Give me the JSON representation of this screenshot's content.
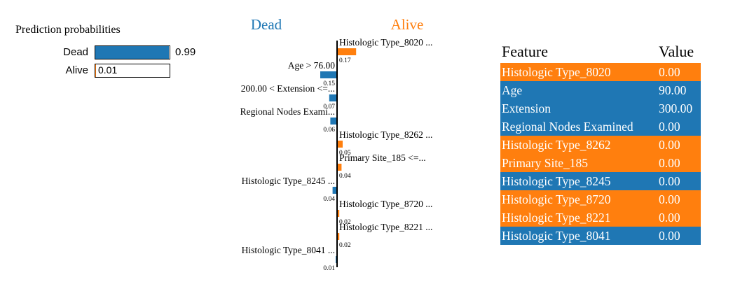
{
  "prediction": {
    "title": "Prediction probabilities",
    "classes": [
      {
        "label": "Dead",
        "value": 0.99,
        "value_text": "0.99",
        "color": "#1f77b4"
      },
      {
        "label": "Alive",
        "value": 0.01,
        "value_text": "0.01",
        "color": "#ff7f0e"
      }
    ]
  },
  "chart_data": {
    "type": "bar",
    "class_labels": {
      "negative": "Dead",
      "positive": "Alive"
    },
    "colors": {
      "negative": "#1f77b4",
      "positive": "#ff7f0e"
    },
    "features": [
      {
        "label": "Histologic Type_8020 ...",
        "value": 0.17,
        "value_text": "0.17",
        "side": "positive"
      },
      {
        "label": "Age > 76.00",
        "value": 0.15,
        "value_text": "0.15",
        "side": "negative"
      },
      {
        "label": "200.00 < Extension <=...",
        "value": 0.07,
        "value_text": "0.07",
        "side": "negative"
      },
      {
        "label": "Regional Nodes Exami...",
        "value": 0.06,
        "value_text": "0.06",
        "side": "negative"
      },
      {
        "label": "Histologic Type_8262 ...",
        "value": 0.05,
        "value_text": "0.05",
        "side": "positive"
      },
      {
        "label": "Primary Site_185 <=...",
        "value": 0.04,
        "value_text": "0.04",
        "side": "positive"
      },
      {
        "label": "Histologic Type_8245 ...",
        "value": 0.04,
        "value_text": "0.04",
        "side": "negative"
      },
      {
        "label": "Histologic Type_8720 ...",
        "value": 0.02,
        "value_text": "0.02",
        "side": "positive"
      },
      {
        "label": "Histologic Type_8221 ...",
        "value": 0.02,
        "value_text": "0.02",
        "side": "positive"
      },
      {
        "label": "Histologic Type_8041 ...",
        "value": 0.01,
        "value_text": "0.01",
        "side": "negative"
      }
    ]
  },
  "feature_table": {
    "headers": [
      "Feature",
      "Value"
    ],
    "rows": [
      {
        "feature": "Histologic Type_8020",
        "value": "0.00",
        "color": "#ff7f0e"
      },
      {
        "feature": "Age",
        "value": "90.00",
        "color": "#1f77b4"
      },
      {
        "feature": "Extension",
        "value": "300.00",
        "color": "#1f77b4"
      },
      {
        "feature": "Regional Nodes Examined",
        "value": "0.00",
        "color": "#1f77b4"
      },
      {
        "feature": "Histologic Type_8262",
        "value": "0.00",
        "color": "#ff7f0e"
      },
      {
        "feature": "Primary Site_185",
        "value": "0.00",
        "color": "#ff7f0e"
      },
      {
        "feature": "Histologic Type_8245",
        "value": "0.00",
        "color": "#1f77b4"
      },
      {
        "feature": "Histologic Type_8720",
        "value": "0.00",
        "color": "#ff7f0e"
      },
      {
        "feature": "Histologic Type_8221",
        "value": "0.00",
        "color": "#ff7f0e"
      },
      {
        "feature": "Histologic Type_8041",
        "value": "0.00",
        "color": "#1f77b4"
      }
    ]
  }
}
